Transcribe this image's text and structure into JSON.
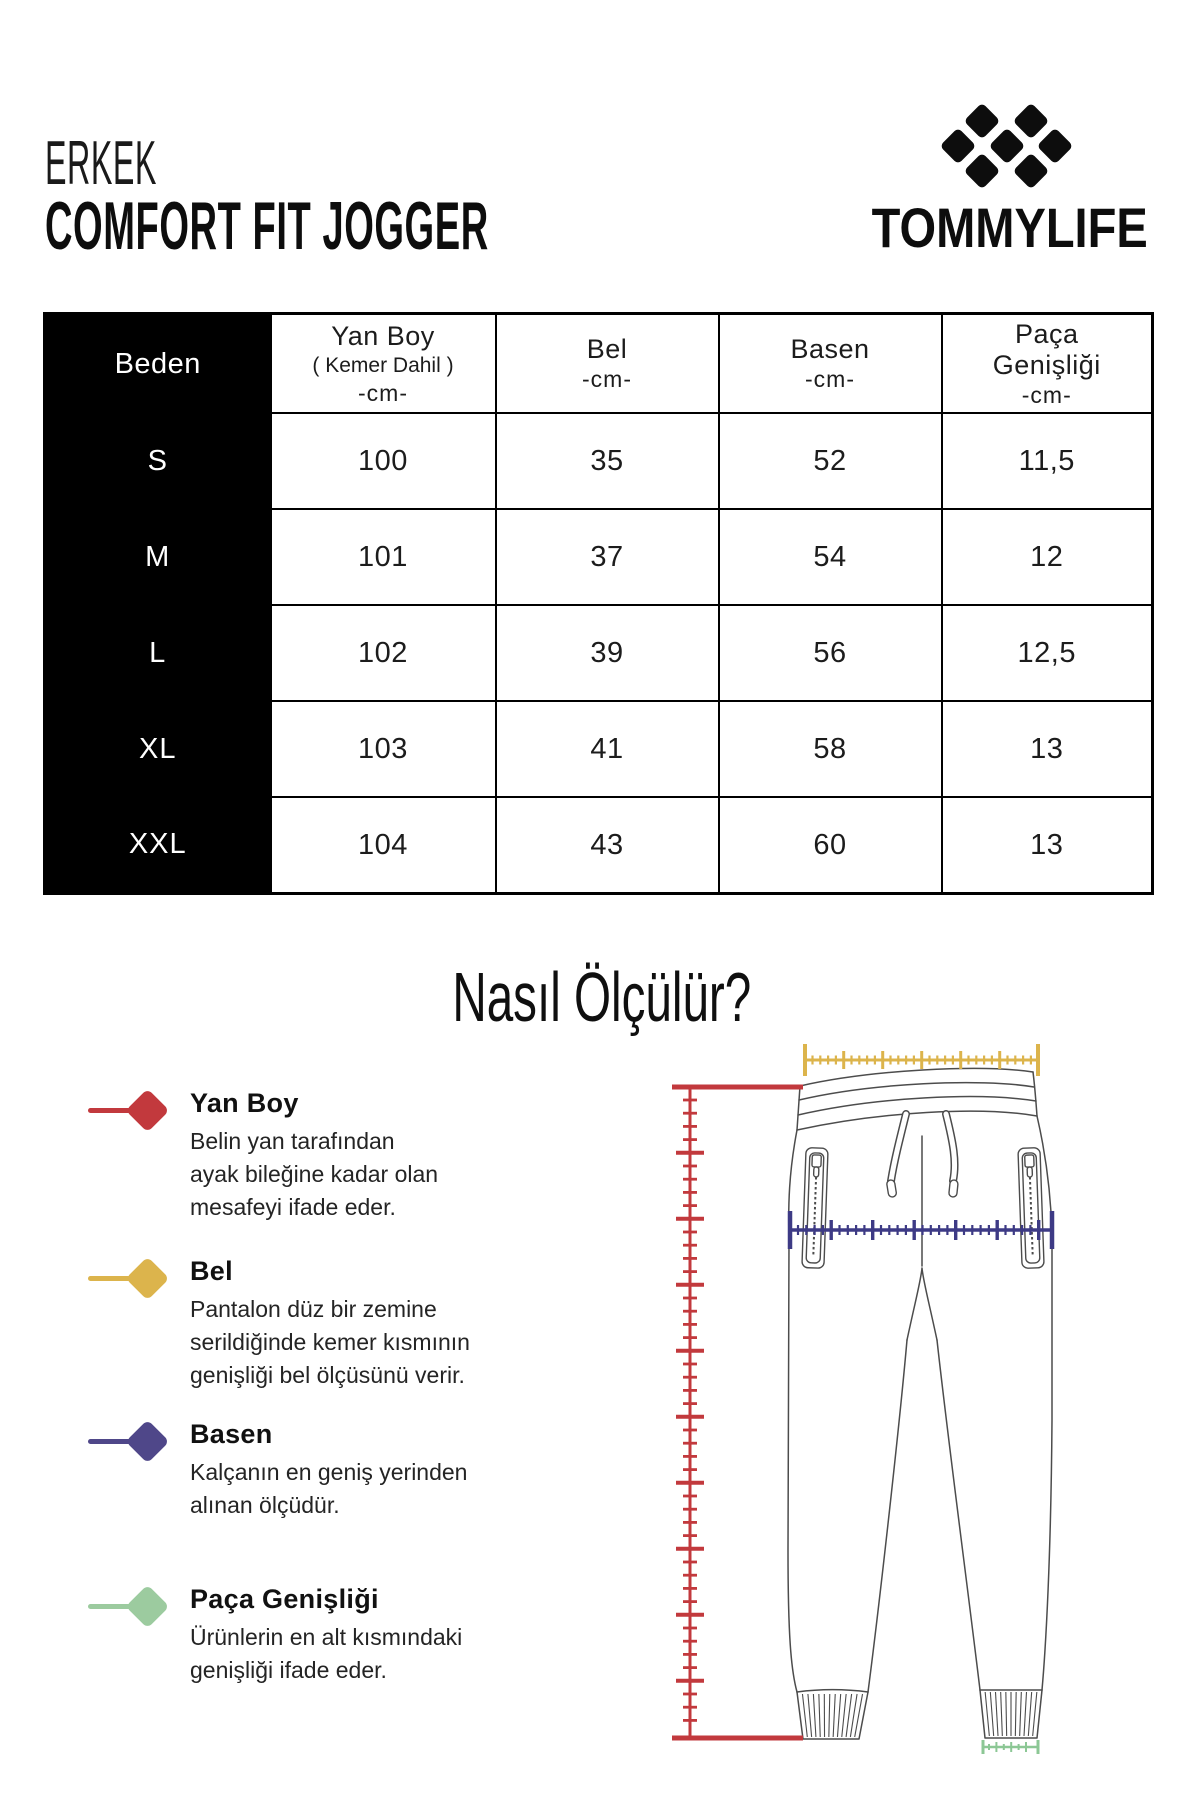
{
  "header": {
    "gender": "ERKEK",
    "product": "COMFORT FIT JOGGER",
    "brand": "TOMMYLIFE"
  },
  "table": {
    "headers": [
      {
        "lines": [
          "Beden"
        ]
      },
      {
        "lines": [
          "Yan Boy",
          "( Kemer Dahil )",
          "-cm-"
        ]
      },
      {
        "lines": [
          "Bel",
          "-cm-"
        ]
      },
      {
        "lines": [
          "Basen",
          "-cm-"
        ]
      },
      {
        "lines": [
          "Paça",
          "Genişliği",
          "-cm-"
        ]
      }
    ],
    "rows": [
      {
        "size": "S",
        "values": [
          "100",
          "35",
          "52",
          "11,5"
        ]
      },
      {
        "size": "M",
        "values": [
          "101",
          "37",
          "54",
          "12"
        ]
      },
      {
        "size": "L",
        "values": [
          "102",
          "39",
          "56",
          "12,5"
        ]
      },
      {
        "size": "XL",
        "values": [
          "103",
          "41",
          "58",
          "13"
        ]
      },
      {
        "size": "XXL",
        "values": [
          "104",
          "43",
          "60",
          "13"
        ]
      }
    ]
  },
  "how": {
    "title": "Nasıl Ölçülür?",
    "items": [
      {
        "title": "Yan Boy",
        "color": "#c2393d",
        "desc": [
          "Belin yan tarafından",
          "ayak bileğine kadar olan",
          "mesafeyi ifade eder."
        ]
      },
      {
        "title": "Bel",
        "color": "#dcb44c",
        "desc": [
          "Pantalon düz bir zemine",
          "serildiğinde kemer kısmının",
          "genişliği bel ölçüsünü verir."
        ]
      },
      {
        "title": "Basen",
        "color": "#4f4789",
        "desc": [
          "Kalçanın en geniş yerinden",
          "alınan ölçüdür."
        ]
      },
      {
        "title": "Paça Genişliği",
        "color": "#9ccb9f",
        "desc": [
          "Ürünlerin en alt kısmındaki",
          "genişliği ifade eder."
        ]
      }
    ]
  },
  "diagram": {
    "outline_color": "#4c4c4c",
    "rulers": {
      "yan_boy": "#c2393d",
      "bel": "#dcb44c",
      "basen": "#3d3a85",
      "paca": "#8cc795"
    }
  }
}
